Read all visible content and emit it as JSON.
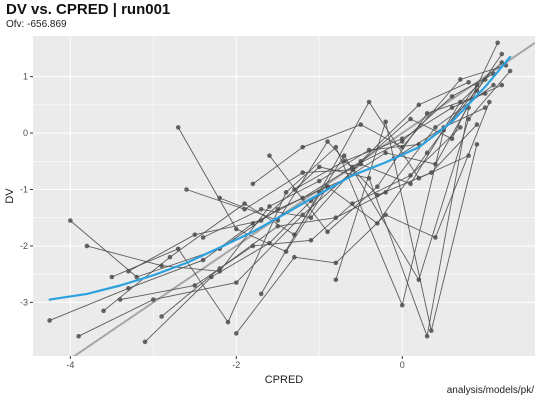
{
  "chart_data": {
    "type": "scatter",
    "title": "DV vs. CPRED | run001",
    "subtitle": "Ofv: -656.869",
    "caption": "analysis/models/pk/",
    "xlabel": "CPRED",
    "ylabel": "DV",
    "xlim": [
      -4.45,
      1.6
    ],
    "ylim": [
      -3.95,
      1.72
    ],
    "xticks": [
      -4,
      -2,
      0
    ],
    "yticks": [
      1,
      0,
      -1,
      -2,
      -3
    ],
    "grid": true,
    "legend": "none",
    "colors": {
      "panel": "#ebebeb",
      "grid": "#ffffff",
      "points": "#4d4d4d",
      "smooth": "#2ca1e0",
      "identity": "#a6a6a6"
    },
    "identity_line": {
      "x": [
        -4.45,
        1.6
      ],
      "y": [
        -4.45,
        1.6
      ]
    },
    "smooth": {
      "x": [
        -4.25,
        -3.8,
        -3.4,
        -3.0,
        -2.6,
        -2.2,
        -1.8,
        -1.4,
        -1.0,
        -0.6,
        -0.2,
        0.2,
        0.6,
        1.0,
        1.3
      ],
      "y": [
        -2.95,
        -2.85,
        -2.7,
        -2.52,
        -2.3,
        -2.03,
        -1.75,
        -1.42,
        -1.08,
        -0.75,
        -0.52,
        -0.25,
        0.2,
        0.82,
        1.35
      ]
    },
    "series": [
      {
        "x": [
          -4.25,
          -3.3,
          -2.4,
          -1.8,
          -1.2,
          -0.6,
          0.0,
          0.6,
          1.1
        ],
        "y": [
          -3.32,
          -2.75,
          -2.25,
          -1.6,
          -1.15,
          -0.6,
          -0.15,
          0.65,
          1.05
        ]
      },
      {
        "x": [
          -4.0,
          -3.2,
          -2.2,
          -1.5,
          -0.9,
          -0.3,
          0.3,
          0.9
        ],
        "y": [
          -1.55,
          -2.55,
          -2.05,
          -1.35,
          -0.95,
          -1.6,
          -0.35,
          0.85
        ]
      },
      {
        "x": [
          -3.9,
          -3.0,
          -2.0,
          -1.2,
          -0.5,
          0.1,
          0.7,
          1.2
        ],
        "y": [
          -3.6,
          -2.95,
          -2.65,
          -1.45,
          -0.55,
          -0.9,
          0.55,
          1.25
        ]
      },
      {
        "x": [
          -3.6,
          -2.8,
          -1.9,
          -1.3,
          -0.7,
          0.2,
          0.8,
          1.3
        ],
        "y": [
          -3.15,
          -2.2,
          -1.25,
          -1.8,
          -0.4,
          -2.6,
          0.25,
          1.1
        ]
      },
      {
        "x": [
          -3.5,
          -2.7,
          -2.1,
          -1.4,
          -0.8,
          0.0,
          0.5,
          1.0
        ],
        "y": [
          -2.55,
          -2.05,
          -3.35,
          -1.05,
          -0.25,
          -3.05,
          0.05,
          0.95
        ]
      },
      {
        "x": [
          -3.3,
          -2.5,
          -1.7,
          -1.0,
          -0.4,
          0.3,
          0.8
        ],
        "y": [
          -2.45,
          -1.8,
          -1.55,
          -0.6,
          -0.8,
          -3.6,
          0.45
        ]
      },
      {
        "x": [
          -3.1,
          -2.3,
          -1.6,
          -1.1,
          -0.2,
          0.4,
          0.9,
          1.2
        ],
        "y": [
          -3.7,
          -2.55,
          -1.95,
          -1.2,
          -0.35,
          -0.55,
          0.75,
          1.4
        ]
      },
      {
        "x": [
          -2.7,
          -2.0,
          -1.4,
          -0.9,
          -0.1,
          0.5,
          1.0
        ],
        "y": [
          0.1,
          -1.7,
          -2.1,
          -0.95,
          -0.45,
          0.1,
          0.45
        ]
      },
      {
        "x": [
          -2.6,
          -1.9,
          -1.2,
          -0.6,
          0.1,
          0.6,
          1.15
        ],
        "y": [
          -1.0,
          -1.35,
          -0.7,
          -0.65,
          0.25,
          -0.1,
          1.6
        ]
      },
      {
        "x": [
          -2.2,
          -1.5,
          -0.9,
          -0.3,
          0.35,
          0.9
        ],
        "y": [
          -1.15,
          -1.55,
          -0.15,
          -1.1,
          -0.7,
          0.15
        ]
      },
      {
        "x": [
          -2.0,
          -1.3,
          -0.8,
          -0.2,
          0.4,
          1.05
        ],
        "y": [
          -3.55,
          -2.2,
          -2.3,
          -1.45,
          -1.85,
          0.55
        ]
      },
      {
        "x": [
          -1.8,
          -1.2,
          -0.5,
          0.0,
          0.7,
          1.25
        ],
        "y": [
          -0.9,
          -0.25,
          0.15,
          -0.25,
          0.95,
          1.2
        ]
      },
      {
        "x": [
          -1.7,
          -1.0,
          -0.4,
          0.2,
          0.8
        ],
        "y": [
          -2.85,
          -1.05,
          0.55,
          -0.8,
          -0.4
        ]
      },
      {
        "x": [
          -1.6,
          -0.9,
          -0.3,
          0.3,
          1.0
        ],
        "y": [
          -0.4,
          -1.75,
          -0.95,
          0.35,
          0.7
        ]
      },
      {
        "x": [
          -3.8,
          -2.9,
          -2.2,
          -1.6,
          -1.0,
          -0.4,
          0.2
        ],
        "y": [
          -2.0,
          -2.35,
          -2.45,
          -1.3,
          -0.85,
          -0.3,
          -0.2
        ]
      },
      {
        "x": [
          -3.4,
          -2.5,
          -1.8,
          -1.1,
          -0.6,
          0.1,
          0.7
        ],
        "y": [
          -2.95,
          -2.7,
          -2.0,
          -1.9,
          -1.25,
          -0.75,
          0.1
        ]
      },
      {
        "x": [
          -2.9,
          -2.2,
          -1.5,
          -0.8,
          -0.2,
          0.4,
          1.1
        ],
        "y": [
          -3.25,
          -2.4,
          -1.65,
          -1.5,
          -1.05,
          0.1,
          0.85
        ]
      },
      {
        "x": [
          -1.3,
          -0.7,
          0.0,
          0.6,
          1.2
        ],
        "y": [
          -1.0,
          -0.5,
          -0.1,
          0.45,
          0.85
        ]
      },
      {
        "x": [
          -2.4,
          -1.7,
          -1.1,
          -0.5,
          0.2,
          0.8
        ],
        "y": [
          -1.85,
          -1.35,
          -1.5,
          -0.5,
          0.5,
          0.9
        ]
      },
      {
        "x": [
          -0.8,
          -0.2,
          0.35,
          0.9
        ],
        "y": [
          -2.6,
          0.2,
          -3.5,
          -0.2
        ]
      }
    ]
  }
}
